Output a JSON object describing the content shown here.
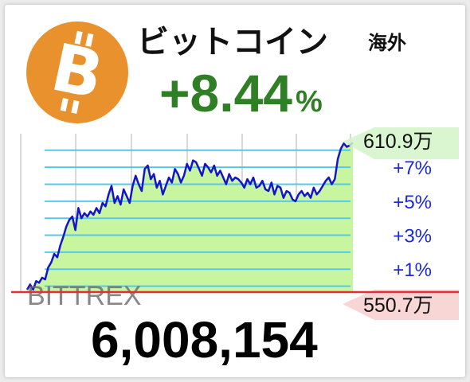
{
  "header": {
    "title": "ビットコイン",
    "region": "海外",
    "change_value": "+8.44",
    "change_unit": "%"
  },
  "price": "6,008,154",
  "colors": {
    "logo_orange": "#e8912d",
    "change_green": "#2f7f25",
    "line_blue": "#1414c8",
    "fill_green": "#c8f5a0",
    "grid_cyan": "#55c8ee",
    "baseline_red": "#e03030",
    "pct_label_blue": "#1a2adc"
  },
  "chart_data": {
    "type": "area",
    "exchange": "BITTREX",
    "high_label": "610.9万",
    "low_label": "550.7万",
    "pct_ticks": [
      "+7%",
      "+5%",
      "+3%",
      "+1%"
    ],
    "ylim": [
      -0.3,
      8.6
    ],
    "values": [
      -0.2,
      0.1,
      -0.2,
      0.3,
      0.2,
      0.5,
      0.4,
      1.1,
      1.4,
      1.9,
      1.7,
      2.4,
      2.9,
      3.5,
      3.9,
      4.1,
      3.3,
      4.6,
      4.0,
      4.3,
      4.1,
      4.4,
      4.2,
      4.6,
      4.3,
      4.9,
      4.7,
      5.4,
      5.9,
      4.9,
      5.3,
      4.8,
      5.7,
      5.3,
      4.9,
      5.9,
      6.5,
      6.0,
      5.6,
      6.9,
      7.1,
      6.3,
      6.6,
      5.8,
      6.2,
      5.4,
      5.9,
      6.4,
      6.1,
      6.9,
      6.6,
      6.1,
      6.5,
      7.2,
      6.8,
      7.4,
      7.3,
      6.9,
      6.5,
      7.2,
      7.0,
      6.7,
      7.1,
      6.5,
      6.8,
      6.4,
      6.0,
      6.6,
      6.2,
      6.4,
      6.3,
      6.1,
      5.8,
      6.3,
      6.0,
      6.4,
      5.8,
      5.9,
      6.2,
      5.7,
      5.6,
      6.1,
      5.4,
      5.9,
      5.8,
      5.2,
      5.6,
      5.5,
      5.1,
      5.0,
      5.4,
      5.6,
      5.3,
      5.5,
      5.2,
      5.8,
      5.4,
      5.6,
      5.9,
      6.2,
      6.4,
      6.0,
      6.3,
      7.5,
      8.1,
      8.4,
      8.2,
      8.3,
      8.44
    ]
  }
}
